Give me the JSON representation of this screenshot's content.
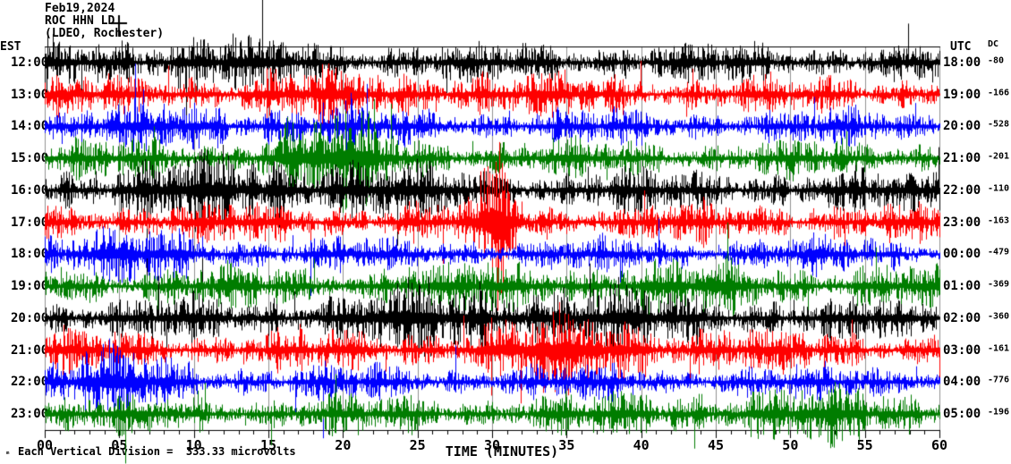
{
  "header": {
    "date": "Feb19,2024",
    "station": "ROC HHN LD",
    "network": "(LDEO, Rochester)"
  },
  "axes": {
    "left_label": "EST",
    "right_label": "UTC",
    "dc_label": "DC",
    "x_title": "TIME (MINUTES)",
    "x_ticks": [
      "00",
      "05",
      "10",
      "15",
      "20",
      "25",
      "30",
      "35",
      "40",
      "45",
      "50",
      "55",
      "60"
    ]
  },
  "footer": {
    "watermark": "ₘ",
    "scale_note": "Each Vertical Division =  333.33 microvolts"
  },
  "chart_data": {
    "type": "line",
    "kind": "helicorder seismogram, 12 rows of 60 minutes, one row per hour",
    "title": "ROC HHN LD (LDEO, Rochester) Feb19,2024",
    "xlabel": "TIME (MINUTES)",
    "x_range": [
      0,
      60
    ],
    "x_major_tick_minutes": 5,
    "x_minor_tick_minutes": 1,
    "grid": "vertical gray lines every 5 minutes",
    "vertical_division_microvolts": 333.33,
    "grid_color": "#919191",
    "frame_color": "#000000",
    "colors": {
      "black": "#000000",
      "red": "#ff0000",
      "blue": "#0000ff",
      "green": "#007d00"
    },
    "rows": [
      {
        "est": "12:00",
        "utc": "18:00",
        "dc": "-80",
        "color": "black",
        "amp": 14,
        "seed": 1,
        "burst": {
          "min": 8,
          "width": 6,
          "amp": 8
        }
      },
      {
        "est": "13:00",
        "utc": "19:00",
        "dc": "-166",
        "color": "red",
        "amp": 13,
        "seed": 2,
        "burst": {
          "min": 22,
          "width": 9,
          "amp": 6
        }
      },
      {
        "est": "14:00",
        "utc": "20:00",
        "dc": "-528",
        "color": "blue",
        "amp": 12,
        "seed": 3,
        "burst": {
          "min": 12,
          "width": 7,
          "amp": 6
        }
      },
      {
        "est": "15:00",
        "utc": "21:00",
        "dc": "-201",
        "color": "green",
        "amp": 13,
        "seed": 4,
        "burst": {
          "min": 19,
          "width": 3,
          "amp": 22
        }
      },
      {
        "est": "16:00",
        "utc": "22:00",
        "dc": "-110",
        "color": "black",
        "amp": 15,
        "seed": 5,
        "burst": {
          "min": 15,
          "width": 6,
          "amp": 16
        }
      },
      {
        "est": "17:00",
        "utc": "23:00",
        "dc": "-163",
        "color": "red",
        "amp": 14,
        "seed": 6,
        "burst": {
          "min": 30.5,
          "width": 0.8,
          "amp": 48
        }
      },
      {
        "est": "18:00",
        "utc": "00:00",
        "dc": "-479",
        "color": "blue",
        "amp": 12,
        "seed": 7,
        "burst": {
          "min": 5,
          "width": 5,
          "amp": 8
        }
      },
      {
        "est": "19:00",
        "utc": "01:00",
        "dc": "-369",
        "color": "green",
        "amp": 14,
        "seed": 8,
        "burst": {
          "min": 40,
          "width": 10,
          "amp": 6
        }
      },
      {
        "est": "20:00",
        "utc": "02:00",
        "dc": "-360",
        "color": "black",
        "amp": 15,
        "seed": 9,
        "burst": {
          "min": 30,
          "width": 8,
          "amp": 14
        }
      },
      {
        "est": "21:00",
        "utc": "03:00",
        "dc": "-161",
        "color": "red",
        "amp": 14,
        "seed": 10,
        "burst": {
          "min": 36,
          "width": 5,
          "amp": 16
        }
      },
      {
        "est": "22:00",
        "utc": "04:00",
        "dc": "-776",
        "color": "blue",
        "amp": 12,
        "seed": 11,
        "burst": {
          "min": 4,
          "width": 4,
          "amp": 12
        }
      },
      {
        "est": "23:00",
        "utc": "05:00",
        "dc": "-196",
        "color": "green",
        "amp": 13,
        "seed": 12,
        "burst": {
          "min": 50,
          "width": 8,
          "amp": 7
        }
      }
    ]
  }
}
